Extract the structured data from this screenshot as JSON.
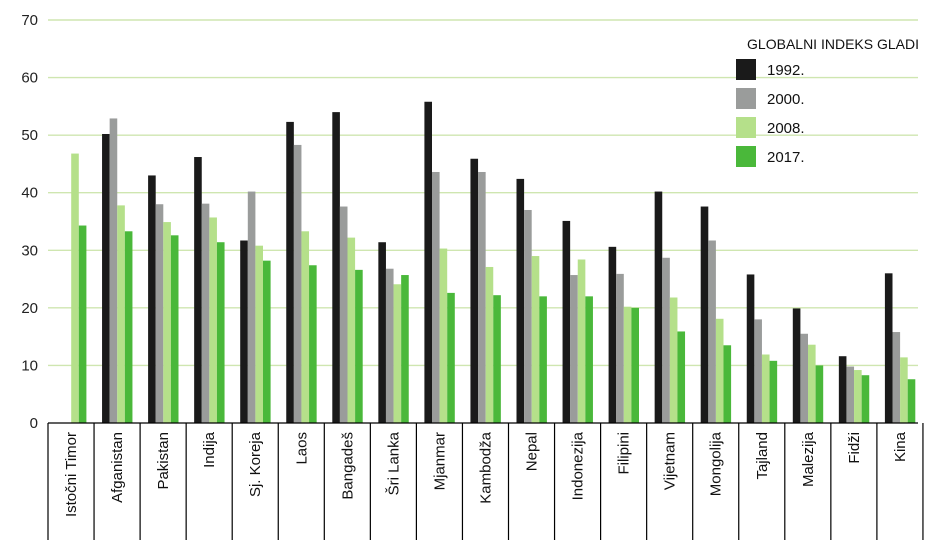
{
  "chart_data": {
    "type": "bar",
    "categories": [
      "Istočni Timor",
      "Afganistan",
      "Pakistan",
      "Indija",
      "Sj. Koreja",
      "Laos",
      "Bangadeš",
      "Šri Lanka",
      "Mjanmar",
      "Kambodža",
      "Nepal",
      "Indonezija",
      "Filipini",
      "Vijetnam",
      "Mongolija",
      "Tajland",
      "Malezija",
      "Fidži",
      "Kina"
    ],
    "series": [
      {
        "name": "1992.",
        "color": "#1a1a1a",
        "values": [
          null,
          50.2,
          43,
          46.2,
          31.7,
          52.3,
          54,
          31.4,
          55.8,
          45.9,
          42.4,
          35.1,
          30.6,
          40.2,
          37.6,
          25.8,
          19.9,
          11.6,
          26
        ]
      },
      {
        "name": "2000.",
        "color": "#9a9c9b",
        "values": [
          null,
          52.9,
          38,
          38.1,
          40.2,
          48.3,
          37.6,
          26.8,
          43.6,
          43.6,
          37,
          25.7,
          25.9,
          28.7,
          31.7,
          18,
          15.5,
          9.8,
          15.8
        ]
      },
      {
        "name": "2008.",
        "color": "#b5e08a",
        "values": [
          46.8,
          37.8,
          34.9,
          35.7,
          30.8,
          33.3,
          32.2,
          24.1,
          30.3,
          27.1,
          29,
          28.4,
          20.2,
          21.8,
          18.1,
          11.9,
          13.6,
          9.2,
          11.4
        ]
      },
      {
        "name": "2017.",
        "color": "#4ab83a",
        "values": [
          34.3,
          33.3,
          32.6,
          31.4,
          28.2,
          27.4,
          26.6,
          25.7,
          22.6,
          22.2,
          22,
          22,
          20,
          15.9,
          13.5,
          10.8,
          10,
          8.3,
          7.6
        ]
      }
    ],
    "ylim": [
      0,
      70
    ],
    "yticks": [
      0,
      10,
      20,
      30,
      40,
      50,
      60,
      70
    ],
    "grid": true,
    "grid_color": "#cfe6b0",
    "legend": {
      "title": "GLOBALNI INDEKS GLADI",
      "position": "top-right"
    }
  }
}
